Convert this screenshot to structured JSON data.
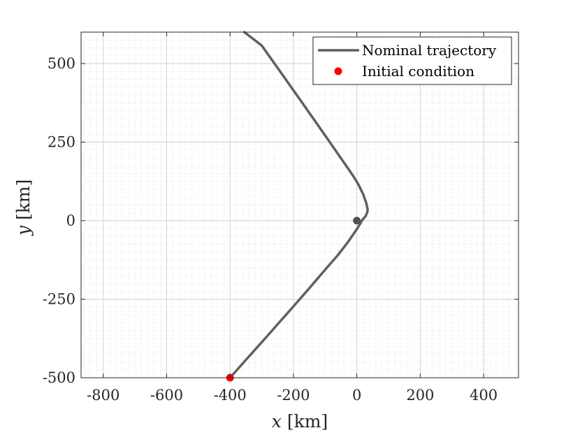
{
  "chart_data": {
    "type": "line",
    "xlabel": {
      "var": "x",
      "unit": " [km]"
    },
    "ylabel": {
      "var": "y",
      "unit": " [km]"
    },
    "xlim": [
      -870,
      510
    ],
    "ylim": [
      -500,
      600
    ],
    "xticks": [
      -800,
      -600,
      -400,
      -200,
      0,
      200,
      400
    ],
    "yticks": [
      -500,
      -250,
      0,
      250,
      500
    ],
    "xtick_labels": [
      "-800",
      "-600",
      "-400",
      "-200",
      "0",
      "200",
      "400"
    ],
    "ytick_labels": [
      "-500",
      "-250",
      "0",
      "250",
      "500"
    ],
    "grid": true,
    "minor_grid": true,
    "legend_position": "top-right",
    "series": [
      {
        "name": "Nominal trajectory",
        "color": "#606060",
        "x": [
          -400,
          -350,
          -300,
          -250,
          -200,
          -150,
          -100,
          -60,
          -30,
          -10,
          5,
          18,
          28,
          33,
          34,
          30,
          20,
          6,
          -10,
          -40,
          -80,
          -120,
          -180,
          -240,
          -300,
          -355
        ],
        "y": [
          -500,
          -443,
          -387,
          -330,
          -273,
          -215,
          -156,
          -110,
          -71,
          -42,
          -19,
          3,
          15,
          27,
          36,
          55,
          84,
          113,
          140,
          184,
          242,
          300,
          386,
          472,
          557,
          600
        ]
      }
    ],
    "markers": [
      {
        "name": "Initial condition",
        "x": -400,
        "y": -500,
        "color": "#ff0000",
        "in_legend": true
      },
      {
        "name": "",
        "x": 0,
        "y": 0,
        "color": "#505050",
        "in_legend": false
      }
    ]
  }
}
